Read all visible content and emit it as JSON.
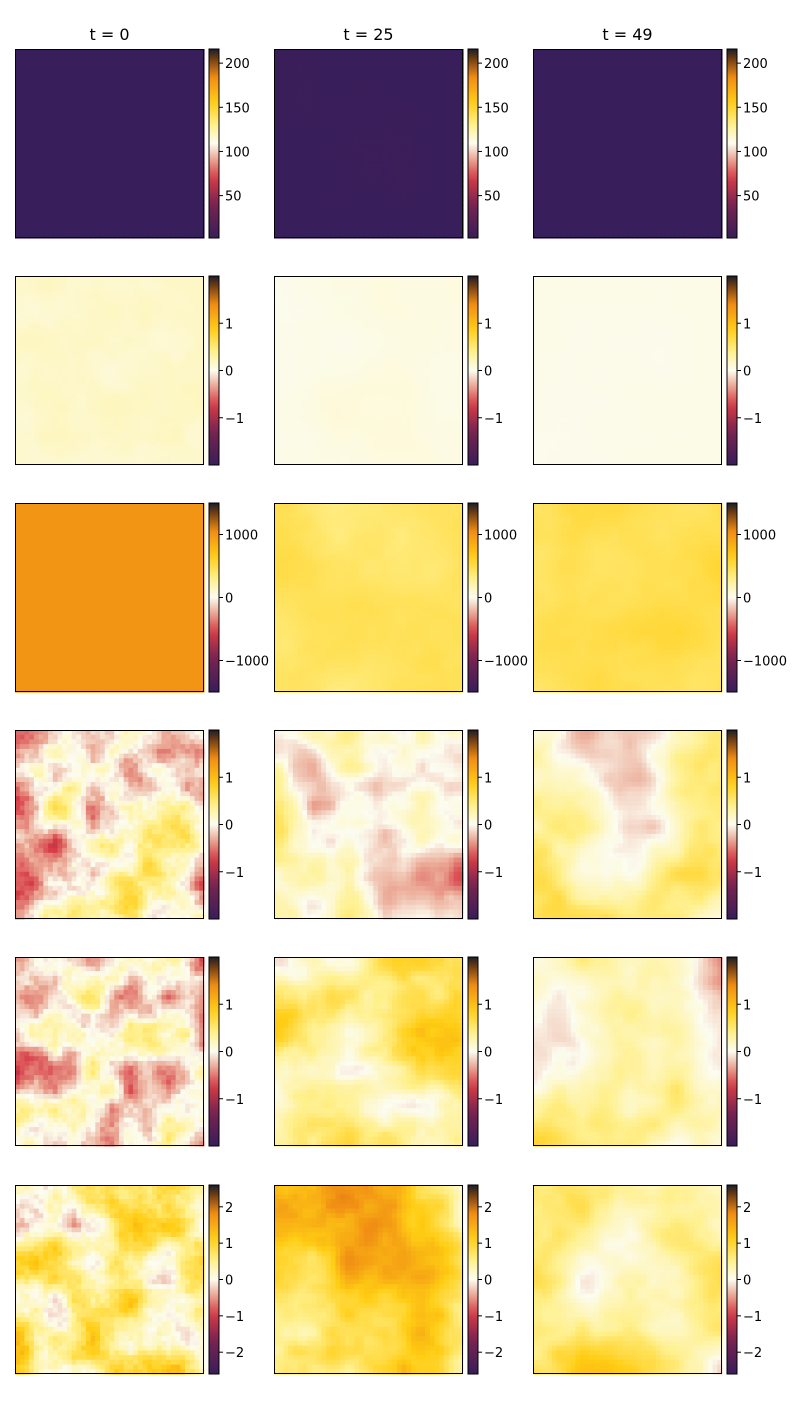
{
  "chart_data": {
    "type": "heatmap",
    "layout": "grid of 6 rows x 3 columns",
    "column_titles": [
      "t = 0",
      "t = 25",
      "t = 49"
    ],
    "colormap": "diverging purple-red-white-yellow-orange-black",
    "grid": false,
    "rows": [
      {
        "colorbar_range": [
          2,
          216
        ],
        "colorbar_ticks": [
          50,
          100,
          150,
          200
        ],
        "colorbar_tick_labels": [
          "50",
          "100",
          "150",
          "200"
        ],
        "panels": [
          {
            "column": "t = 0",
            "base_value": 2,
            "pattern": "uniform"
          },
          {
            "column": "t = 25",
            "base_value": 2,
            "pattern": "near-uniform with faint streaks"
          },
          {
            "column": "t = 49",
            "base_value": 2,
            "pattern": "near-uniform"
          }
        ]
      },
      {
        "colorbar_range": [
          -2,
          2
        ],
        "colorbar_ticks": [
          -1,
          0,
          1
        ],
        "colorbar_tick_labels": [
          "−1",
          "0",
          "1"
        ],
        "panels": [
          {
            "column": "t = 0",
            "base_value": 0.15,
            "pattern": "faint noise"
          },
          {
            "column": "t = 25",
            "base_value": 0.05,
            "pattern": "near-uniform with faint streaks"
          },
          {
            "column": "t = 49",
            "base_value": 0.03,
            "pattern": "near-uniform"
          }
        ]
      },
      {
        "colorbar_range": [
          -1500,
          1500
        ],
        "colorbar_ticks": [
          -1000,
          0,
          1000
        ],
        "colorbar_tick_labels": [
          "−1000",
          "0",
          "1000"
        ],
        "panels": [
          {
            "column": "t = 0",
            "base_value": 1000,
            "pattern": "uniform"
          },
          {
            "column": "t = 25",
            "base_value": 420,
            "pattern": "smooth swirls"
          },
          {
            "column": "t = 49",
            "base_value": 480,
            "pattern": "smooth swirls"
          }
        ]
      },
      {
        "colorbar_range": [
          -2,
          2
        ],
        "colorbar_ticks": [
          -1,
          0,
          1
        ],
        "colorbar_tick_labels": [
          "−1",
          "0",
          "1"
        ],
        "panels": [
          {
            "column": "t = 0",
            "base_value": 0.0,
            "pattern": "patchy noise"
          },
          {
            "column": "t = 25",
            "base_value": 0.0,
            "pattern": "large structures"
          },
          {
            "column": "t = 49",
            "base_value": 0.2,
            "pattern": "large smooth structures"
          }
        ]
      },
      {
        "colorbar_range": [
          -2,
          2
        ],
        "colorbar_ticks": [
          -1,
          0,
          1
        ],
        "colorbar_tick_labels": [
          "−1",
          "0",
          "1"
        ],
        "panels": [
          {
            "column": "t = 0",
            "base_value": -0.1,
            "pattern": "patchy noise"
          },
          {
            "column": "t = 25",
            "base_value": 0.3,
            "pattern": "large structures"
          },
          {
            "column": "t = 49",
            "base_value": 0.2,
            "pattern": "large smooth structures"
          }
        ]
      },
      {
        "colorbar_range": [
          -2.6,
          2.6
        ],
        "colorbar_ticks": [
          -2,
          -1,
          0,
          1,
          2
        ],
        "colorbar_tick_labels": [
          "−2",
          "−1",
          "0",
          "1",
          "2"
        ],
        "panels": [
          {
            "column": "t = 0",
            "base_value": 0.6,
            "pattern": "patchy noise"
          },
          {
            "column": "t = 25",
            "base_value": 0.7,
            "pattern": "large structures"
          },
          {
            "column": "t = 49",
            "base_value": 0.4,
            "pattern": "large smooth structures"
          }
        ]
      }
    ]
  }
}
